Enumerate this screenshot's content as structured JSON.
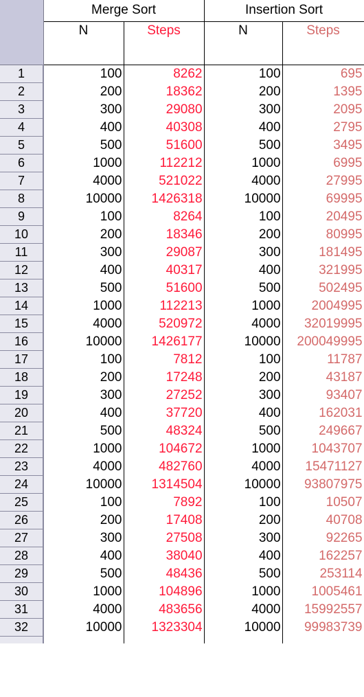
{
  "header": {
    "merge_sort_title": "Merge Sort",
    "insertion_sort_title": "Insertion Sort",
    "ms_n_label": "N",
    "ms_steps_label": "Steps",
    "is_n_label": "N",
    "is_steps_label": "Steps"
  },
  "rows": [
    {
      "idx": "1",
      "ms_n": "100",
      "ms_steps": "8262",
      "is_n": "100",
      "is_steps": "695"
    },
    {
      "idx": "2",
      "ms_n": "200",
      "ms_steps": "18362",
      "is_n": "200",
      "is_steps": "1395"
    },
    {
      "idx": "3",
      "ms_n": "300",
      "ms_steps": "29080",
      "is_n": "300",
      "is_steps": "2095"
    },
    {
      "idx": "4",
      "ms_n": "400",
      "ms_steps": "40308",
      "is_n": "400",
      "is_steps": "2795"
    },
    {
      "idx": "5",
      "ms_n": "500",
      "ms_steps": "51600",
      "is_n": "500",
      "is_steps": "3495"
    },
    {
      "idx": "6",
      "ms_n": "1000",
      "ms_steps": "112212",
      "is_n": "1000",
      "is_steps": "6995"
    },
    {
      "idx": "7",
      "ms_n": "4000",
      "ms_steps": "521022",
      "is_n": "4000",
      "is_steps": "27995"
    },
    {
      "idx": "8",
      "ms_n": "10000",
      "ms_steps": "1426318",
      "is_n": "10000",
      "is_steps": "69995"
    },
    {
      "idx": "9",
      "ms_n": "100",
      "ms_steps": "8264",
      "is_n": "100",
      "is_steps": "20495"
    },
    {
      "idx": "10",
      "ms_n": "200",
      "ms_steps": "18346",
      "is_n": "200",
      "is_steps": "80995"
    },
    {
      "idx": "11",
      "ms_n": "300",
      "ms_steps": "29087",
      "is_n": "300",
      "is_steps": "181495"
    },
    {
      "idx": "12",
      "ms_n": "400",
      "ms_steps": "40317",
      "is_n": "400",
      "is_steps": "321995"
    },
    {
      "idx": "13",
      "ms_n": "500",
      "ms_steps": "51600",
      "is_n": "500",
      "is_steps": "502495"
    },
    {
      "idx": "14",
      "ms_n": "1000",
      "ms_steps": "112213",
      "is_n": "1000",
      "is_steps": "2004995"
    },
    {
      "idx": "15",
      "ms_n": "4000",
      "ms_steps": "520972",
      "is_n": "4000",
      "is_steps": "32019995"
    },
    {
      "idx": "16",
      "ms_n": "10000",
      "ms_steps": "1426177",
      "is_n": "10000",
      "is_steps": "200049995"
    },
    {
      "idx": "17",
      "ms_n": "100",
      "ms_steps": "7812",
      "is_n": "100",
      "is_steps": "11787"
    },
    {
      "idx": "18",
      "ms_n": "200",
      "ms_steps": "17248",
      "is_n": "200",
      "is_steps": "43187"
    },
    {
      "idx": "19",
      "ms_n": "300",
      "ms_steps": "27252",
      "is_n": "300",
      "is_steps": "93407"
    },
    {
      "idx": "20",
      "ms_n": "400",
      "ms_steps": "37720",
      "is_n": "400",
      "is_steps": "162031"
    },
    {
      "idx": "21",
      "ms_n": "500",
      "ms_steps": "48324",
      "is_n": "500",
      "is_steps": "249667"
    },
    {
      "idx": "22",
      "ms_n": "1000",
      "ms_steps": "104672",
      "is_n": "1000",
      "is_steps": "1043707"
    },
    {
      "idx": "23",
      "ms_n": "4000",
      "ms_steps": "482760",
      "is_n": "4000",
      "is_steps": "15471127"
    },
    {
      "idx": "24",
      "ms_n": "10000",
      "ms_steps": "1314504",
      "is_n": "10000",
      "is_steps": "93807975"
    },
    {
      "idx": "25",
      "ms_n": "100",
      "ms_steps": "7892",
      "is_n": "100",
      "is_steps": "10507"
    },
    {
      "idx": "26",
      "ms_n": "200",
      "ms_steps": "17408",
      "is_n": "200",
      "is_steps": "40708"
    },
    {
      "idx": "27",
      "ms_n": "300",
      "ms_steps": "27508",
      "is_n": "300",
      "is_steps": "92265"
    },
    {
      "idx": "28",
      "ms_n": "400",
      "ms_steps": "38040",
      "is_n": "400",
      "is_steps": "162257"
    },
    {
      "idx": "29",
      "ms_n": "500",
      "ms_steps": "48436",
      "is_n": "500",
      "is_steps": "253114"
    },
    {
      "idx": "30",
      "ms_n": "1000",
      "ms_steps": "104896",
      "is_n": "1000",
      "is_steps": "1005461"
    },
    {
      "idx": "31",
      "ms_n": "4000",
      "ms_steps": "483656",
      "is_n": "4000",
      "is_steps": "15992557"
    },
    {
      "idx": "32",
      "ms_n": "10000",
      "ms_steps": "1323304",
      "is_n": "10000",
      "is_steps": "99983739"
    }
  ],
  "colors": {
    "ms_steps": "#ff1a3a",
    "is_steps": "#d46a6a",
    "row_header_bg": "#e8e8f0",
    "corner_bg": "#c8c8dc"
  }
}
